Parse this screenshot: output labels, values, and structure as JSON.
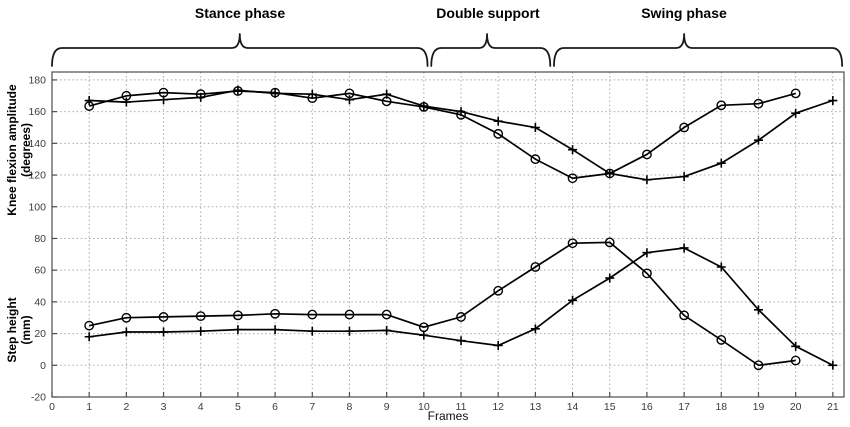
{
  "chart_data": {
    "type": "line",
    "title": "",
    "xlabel": "Frames",
    "ylabel_top": [
      "Knee flexion amplitude",
      "(degrees)"
    ],
    "ylabel_bottom": [
      "Step height",
      "(mm)"
    ],
    "xlim": [
      0,
      21.3
    ],
    "ylim": [
      -20,
      185
    ],
    "x_ticks": [
      0,
      1,
      2,
      3,
      4,
      5,
      6,
      7,
      8,
      9,
      10,
      11,
      12,
      13,
      14,
      15,
      16,
      17,
      18,
      19,
      20,
      21
    ],
    "y_ticks": [
      -20,
      0,
      20,
      40,
      60,
      80,
      100,
      120,
      140,
      160,
      180
    ],
    "grid": "dotted",
    "legend": "none",
    "x": [
      1,
      2,
      3,
      4,
      5,
      6,
      7,
      8,
      9,
      10,
      11,
      12,
      13,
      14,
      15,
      16,
      17,
      18,
      19,
      20,
      21
    ],
    "series": [
      {
        "name": "knee-flexion-circle",
        "group": "Knee flexion amplitude (degrees)",
        "marker": "circle",
        "values": [
          163.5,
          170,
          172,
          171,
          173,
          172,
          168.5,
          171.5,
          166.5,
          163,
          158,
          146,
          130,
          118,
          121,
          133,
          150,
          164,
          165,
          171.5,
          null
        ]
      },
      {
        "name": "knee-flexion-plus",
        "group": "Knee flexion amplitude (degrees)",
        "marker": "plus",
        "values": [
          167,
          166,
          167.5,
          169,
          173.5,
          171.5,
          171,
          167.5,
          171,
          163.5,
          160,
          154,
          150,
          136,
          121,
          117,
          119,
          127.5,
          142,
          159,
          167
        ]
      },
      {
        "name": "step-height-circle",
        "group": "Step height (mm)",
        "marker": "circle",
        "values": [
          25,
          30,
          30.5,
          31,
          31.5,
          32.5,
          32,
          32,
          32,
          24,
          30.5,
          47,
          62,
          77,
          77.5,
          58,
          31.5,
          16,
          0,
          3,
          null
        ]
      },
      {
        "name": "step-height-plus",
        "group": "Step height (mm)",
        "marker": "plus",
        "values": [
          18,
          21,
          21,
          21.5,
          22.5,
          22.5,
          21.5,
          21.5,
          22,
          19,
          15.5,
          12.5,
          23,
          41,
          55,
          71,
          74,
          62,
          35,
          12,
          0
        ]
      }
    ],
    "phases": [
      {
        "label": "Stance phase",
        "x_start": 0.0,
        "x_end": 10.1,
        "x_tip": 5.05
      },
      {
        "label": "Double support",
        "x_start": 10.2,
        "x_end": 13.4,
        "x_tip": 11.7
      },
      {
        "label": "Swing phase",
        "x_start": 13.5,
        "x_end": 21.25,
        "x_tip": 17.0
      }
    ],
    "colors": {
      "line": "#000000",
      "grid": "#a8a8a8",
      "axis": "#4d4d4d",
      "tick_text": "#3c3c3c",
      "brace": "#1a1a1a"
    }
  }
}
